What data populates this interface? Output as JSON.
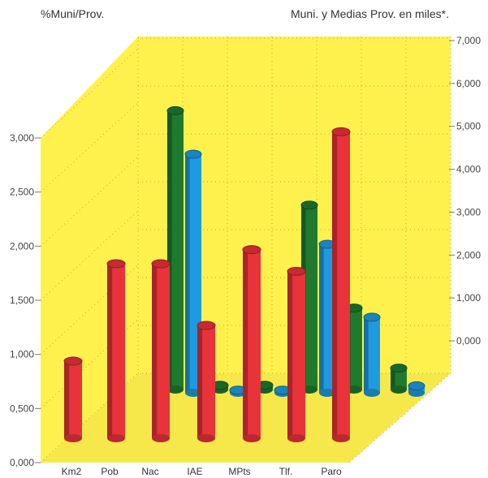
{
  "chart_data": {
    "type": "bar",
    "title_left": "%Muni/Prov.",
    "title_right": "Muni. y Medias Prov. en miles*.",
    "categories": [
      "Km2",
      "Pob",
      "Nac",
      "IAE",
      "MPts",
      "Tlf.",
      "Paro"
    ],
    "left_axis": {
      "ticks": [
        "0,000",
        "0,500",
        "1,000",
        "1,500",
        "2,000",
        "2,500",
        "3,000"
      ],
      "ylim": [
        0,
        3.0
      ]
    },
    "right_axis": {
      "ticks": [
        "0,000",
        "1,000",
        "2,000",
        "3,000",
        "4,000",
        "5,000",
        "6,000",
        "7,000"
      ],
      "ylim": [
        0,
        7.0
      ]
    },
    "series": [
      {
        "axis": "left",
        "color": "#e8333a",
        "values": [
          0.75,
          1.65,
          1.65,
          1.08,
          1.78,
          1.58,
          2.87
        ]
      },
      {
        "axis": "right",
        "color": "#1f7a2e",
        "values": [
          0.1,
          6.5,
          0.1,
          0.1,
          4.3,
          1.9,
          0.5
        ]
      },
      {
        "axis": "right",
        "color": "#1e9be0",
        "values": [
          0.1,
          5.6,
          0.1,
          0.1,
          3.5,
          1.8,
          0.2
        ]
      }
    ],
    "colors": {
      "wall": "#fff14d",
      "floor": "#fff14d",
      "frame": "#d4c23a"
    }
  }
}
